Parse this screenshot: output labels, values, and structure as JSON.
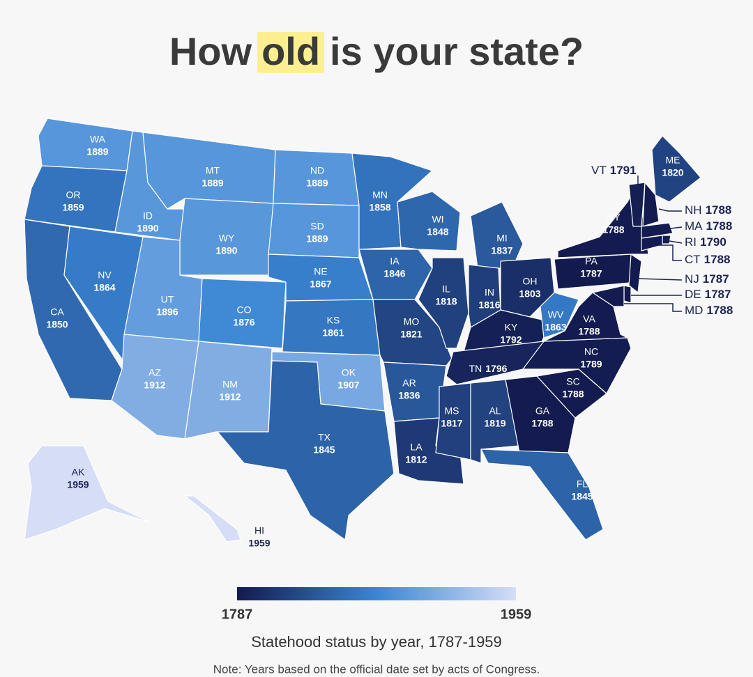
{
  "title": [
    "How",
    "old",
    "is your state?"
  ],
  "states": [
    {
      "abbr": "WA",
      "year": 1889
    },
    {
      "abbr": "OR",
      "year": 1859
    },
    {
      "abbr": "CA",
      "year": 1850
    },
    {
      "abbr": "NV",
      "year": 1864
    },
    {
      "abbr": "ID",
      "year": 1890
    },
    {
      "abbr": "MT",
      "year": 1889
    },
    {
      "abbr": "WY",
      "year": 1890
    },
    {
      "abbr": "UT",
      "year": 1896
    },
    {
      "abbr": "CO",
      "year": 1876
    },
    {
      "abbr": "AZ",
      "year": 1912
    },
    {
      "abbr": "NM",
      "year": 1912
    },
    {
      "abbr": "ND",
      "year": 1889
    },
    {
      "abbr": "SD",
      "year": 1889
    },
    {
      "abbr": "NE",
      "year": 1867
    },
    {
      "abbr": "KS",
      "year": 1861
    },
    {
      "abbr": "OK",
      "year": 1907
    },
    {
      "abbr": "TX",
      "year": 1845
    },
    {
      "abbr": "MN",
      "year": 1858
    },
    {
      "abbr": "IA",
      "year": 1846
    },
    {
      "abbr": "MO",
      "year": 1821
    },
    {
      "abbr": "AR",
      "year": 1836
    },
    {
      "abbr": "LA",
      "year": 1812
    },
    {
      "abbr": "WI",
      "year": 1848
    },
    {
      "abbr": "IL",
      "year": 1818
    },
    {
      "abbr": "MI",
      "year": 1837
    },
    {
      "abbr": "IN",
      "year": 1816
    },
    {
      "abbr": "OH",
      "year": 1803
    },
    {
      "abbr": "KY",
      "year": 1792
    },
    {
      "abbr": "TN",
      "year": 1796
    },
    {
      "abbr": "MS",
      "year": 1817
    },
    {
      "abbr": "AL",
      "year": 1819
    },
    {
      "abbr": "GA",
      "year": 1788
    },
    {
      "abbr": "FL",
      "year": 1845
    },
    {
      "abbr": "SC",
      "year": 1788
    },
    {
      "abbr": "NC",
      "year": 1789
    },
    {
      "abbr": "VA",
      "year": 1788
    },
    {
      "abbr": "WV",
      "year": 1863
    },
    {
      "abbr": "PA",
      "year": 1787
    },
    {
      "abbr": "NY",
      "year": 1788
    },
    {
      "abbr": "ME",
      "year": 1820
    },
    {
      "abbr": "VT",
      "year": 1791
    },
    {
      "abbr": "NH",
      "year": 1788
    },
    {
      "abbr": "MA",
      "year": 1788
    },
    {
      "abbr": "RI",
      "year": 1790
    },
    {
      "abbr": "CT",
      "year": 1788
    },
    {
      "abbr": "NJ",
      "year": 1787
    },
    {
      "abbr": "DE",
      "year": 1787
    },
    {
      "abbr": "MD",
      "year": 1788
    },
    {
      "abbr": "AK",
      "year": 1959
    },
    {
      "abbr": "HI",
      "year": 1959
    }
  ],
  "legend": {
    "min": 1787,
    "max": 1959,
    "colors": [
      "#131a4e",
      "#3a86d4",
      "#d6ddf6"
    ],
    "caption": "Statehood status by year, 1787-1959"
  },
  "note": "Note: Years based on the official date set by acts of Congress."
}
